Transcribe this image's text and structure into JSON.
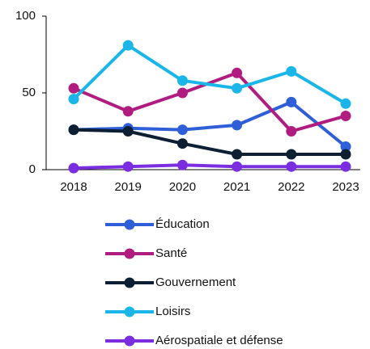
{
  "chart_data": {
    "type": "line",
    "categories": [
      "2018",
      "2019",
      "2020",
      "2021",
      "2022",
      "2023"
    ],
    "series": [
      {
        "name": "Éducation",
        "color": "#2f5fd8",
        "values": [
          26,
          27,
          26,
          29,
          44,
          15
        ]
      },
      {
        "name": "Santé",
        "color": "#b01c80",
        "values": [
          53,
          38,
          50,
          63,
          25,
          35
        ]
      },
      {
        "name": "Gouvernement",
        "color": "#0d1f33",
        "values": [
          26,
          25,
          17,
          10,
          10,
          10
        ]
      },
      {
        "name": "Loisirs",
        "color": "#1ab6ea",
        "values": [
          46,
          81,
          58,
          53,
          64,
          43
        ]
      },
      {
        "name": "Aérospatiale et défense",
        "color": "#7a2ee0",
        "values": [
          1,
          2,
          3,
          2,
          2,
          2
        ]
      }
    ],
    "ylim": [
      0,
      100
    ],
    "yticks": [
      0,
      50,
      100
    ],
    "grid": false,
    "legend": "bottom"
  }
}
